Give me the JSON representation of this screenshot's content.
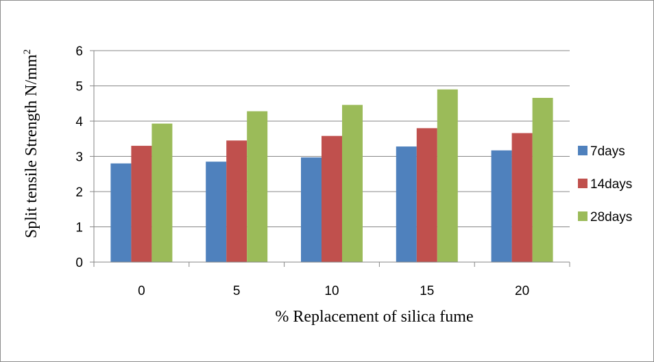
{
  "chart_data": {
    "type": "bar",
    "title": "",
    "xlabel": "% Replacement of silica fume",
    "ylabel": "Split tensile Strength N/mm",
    "ylabel_superscript": "2",
    "categories": [
      "0",
      "5",
      "10",
      "15",
      "20"
    ],
    "ylim": [
      0,
      6
    ],
    "yticks": [
      "0",
      "1",
      "2",
      "3",
      "4",
      "5",
      "6"
    ],
    "grid": true,
    "legend_position": "right",
    "series": [
      {
        "name": "7days",
        "color": "#4f81bd",
        "values": [
          2.8,
          2.85,
          2.97,
          3.28,
          3.17
        ]
      },
      {
        "name": "14days",
        "color": "#c0504d",
        "values": [
          3.3,
          3.45,
          3.58,
          3.8,
          3.66
        ]
      },
      {
        "name": "28days",
        "color": "#9bbb59",
        "values": [
          3.93,
          4.28,
          4.46,
          4.9,
          4.66
        ]
      }
    ]
  }
}
